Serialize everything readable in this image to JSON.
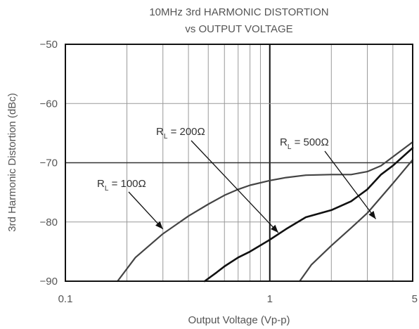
{
  "chart_data": {
    "type": "line",
    "title_lines": [
      "10MHz 3rd HARMONIC DISTORTION",
      "vs OUTPUT VOLTAGE"
    ],
    "xlabel": "Output Voltage (Vp-p)",
    "ylabel": "3rd Harmonic Distortion (dBc)",
    "xscale": "log",
    "xlim": [
      0.1,
      5
    ],
    "ylim": [
      -90,
      -50
    ],
    "xticks": [
      {
        "value": 0.1,
        "label": "0.1"
      },
      {
        "value": 1,
        "label": "1"
      },
      {
        "value": 5,
        "label": "5"
      }
    ],
    "yticks": [
      {
        "value": -50,
        "label": "−50"
      },
      {
        "value": -60,
        "label": "−60"
      },
      {
        "value": -70,
        "label": "−70"
      },
      {
        "value": -80,
        "label": "−80"
      },
      {
        "value": -90,
        "label": "−90"
      }
    ],
    "grid": true,
    "series": [
      {
        "name": "RL = 100Ω",
        "x": [
          0.18,
          0.22,
          0.3,
          0.4,
          0.5,
          0.6,
          0.7,
          0.8,
          1.0,
          1.2,
          1.5,
          2.0,
          2.5,
          3.0,
          3.5,
          4.0,
          5.0
        ],
        "y": [
          -90,
          -86,
          -82,
          -79,
          -77,
          -75.5,
          -74.5,
          -73.8,
          -73,
          -72.5,
          -72.1,
          -72,
          -72,
          -71.5,
          -70.5,
          -69,
          -66.5
        ]
      },
      {
        "name": "RL = 200Ω",
        "x": [
          0.48,
          0.55,
          0.6,
          0.7,
          0.8,
          1.0,
          1.2,
          1.5,
          2.0,
          2.5,
          3.0,
          3.5,
          4.0,
          5.0
        ],
        "y": [
          -90,
          -88.5,
          -87.5,
          -86,
          -85,
          -83,
          -81.2,
          -79.2,
          -78,
          -76.5,
          -74.5,
          -72,
          -70.5,
          -67.5
        ]
      },
      {
        "name": "RL = 500Ω",
        "x": [
          1.4,
          1.6,
          2.0,
          2.5,
          3.0,
          4.0,
          5.0
        ],
        "y": [
          -90,
          -87.2,
          -84,
          -81,
          -78.5,
          -73.5,
          -69.5
        ]
      }
    ],
    "annotations": [
      {
        "main": "R",
        "sub": "L",
        "rest": " = 100Ω",
        "series": 0
      },
      {
        "main": "R",
        "sub": "L",
        "rest": " = 200Ω",
        "series": 1
      },
      {
        "main": "R",
        "sub": "L",
        "rest": " = 500Ω",
        "series": 2
      }
    ]
  }
}
